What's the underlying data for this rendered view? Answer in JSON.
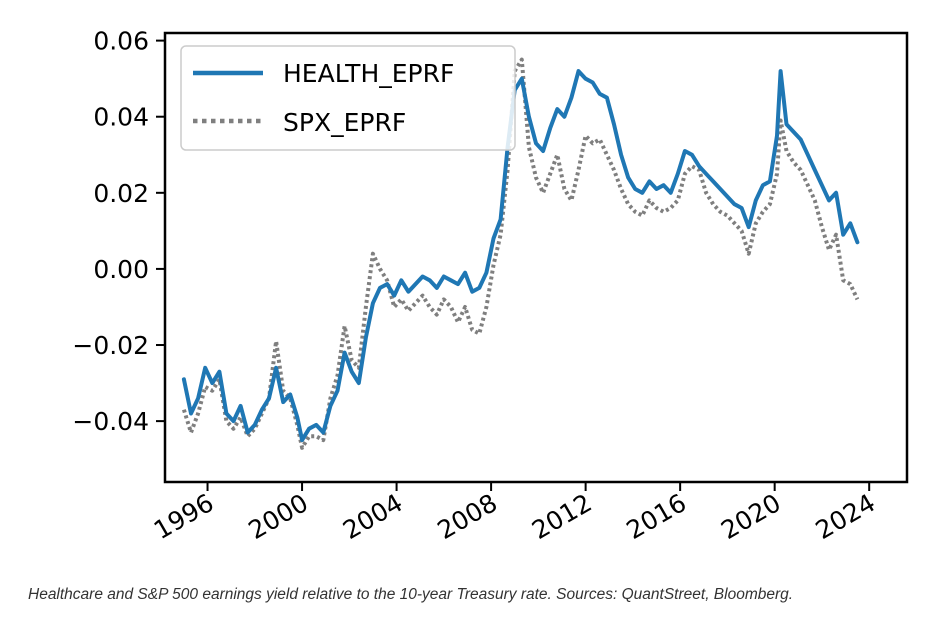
{
  "chart_data": {
    "type": "line",
    "title": "",
    "xlabel": "",
    "ylabel": "",
    "xlim": [
      1994.2,
      2025.6
    ],
    "ylim": [
      -0.056,
      0.062
    ],
    "x_ticks": [
      1996,
      2000,
      2004,
      2008,
      2012,
      2016,
      2020,
      2024
    ],
    "x_tick_labels": [
      "1996",
      "2000",
      "2004",
      "2008",
      "2012",
      "2016",
      "2020",
      "2024"
    ],
    "y_ticks": [
      -0.04,
      -0.02,
      0.0,
      0.02,
      0.04,
      0.06
    ],
    "y_tick_labels": [
      "−0.04",
      "−0.02",
      "0.00",
      "0.02",
      "0.04",
      "0.06"
    ],
    "grid": false,
    "legend_position": "top-left",
    "series": [
      {
        "name": "HEALTH_EPRF",
        "color": "#1f77b4",
        "style": "solid",
        "x": [
          1995.0,
          1995.3,
          1995.6,
          1995.9,
          1996.2,
          1996.5,
          1996.8,
          1997.1,
          1997.4,
          1997.7,
          1998.0,
          1998.3,
          1998.6,
          1998.9,
          1999.2,
          1999.5,
          1999.8,
          2000.0,
          2000.3,
          2000.6,
          2000.9,
          2001.2,
          2001.5,
          2001.8,
          2002.1,
          2002.4,
          2002.7,
          2003.0,
          2003.3,
          2003.6,
          2003.9,
          2004.2,
          2004.5,
          2004.8,
          2005.1,
          2005.4,
          2005.7,
          2006.0,
          2006.3,
          2006.6,
          2006.9,
          2007.2,
          2007.5,
          2007.8,
          2008.1,
          2008.4,
          2008.7,
          2009.0,
          2009.3,
          2009.6,
          2009.9,
          2010.2,
          2010.5,
          2010.8,
          2011.1,
          2011.4,
          2011.7,
          2012.0,
          2012.3,
          2012.6,
          2012.9,
          2013.2,
          2013.5,
          2013.8,
          2014.1,
          2014.4,
          2014.7,
          2015.0,
          2015.3,
          2015.6,
          2015.9,
          2016.2,
          2016.5,
          2016.8,
          2017.1,
          2017.4,
          2017.7,
          2018.0,
          2018.3,
          2018.6,
          2018.9,
          2019.2,
          2019.5,
          2019.8,
          2020.1,
          2020.25,
          2020.5,
          2020.8,
          2021.1,
          2021.4,
          2021.7,
          2022.0,
          2022.3,
          2022.6,
          2022.9,
          2023.2,
          2023.5
        ],
        "values": [
          -0.029,
          -0.038,
          -0.034,
          -0.026,
          -0.03,
          -0.027,
          -0.038,
          -0.04,
          -0.036,
          -0.043,
          -0.041,
          -0.037,
          -0.034,
          -0.026,
          -0.035,
          -0.033,
          -0.039,
          -0.045,
          -0.042,
          -0.041,
          -0.043,
          -0.036,
          -0.032,
          -0.022,
          -0.027,
          -0.03,
          -0.018,
          -0.009,
          -0.005,
          -0.004,
          -0.007,
          -0.003,
          -0.006,
          -0.004,
          -0.002,
          -0.003,
          -0.005,
          -0.002,
          -0.003,
          -0.004,
          -0.001,
          -0.006,
          -0.005,
          -0.001,
          0.008,
          0.013,
          0.032,
          0.047,
          0.05,
          0.04,
          0.033,
          0.031,
          0.037,
          0.042,
          0.04,
          0.045,
          0.052,
          0.05,
          0.049,
          0.046,
          0.045,
          0.038,
          0.03,
          0.024,
          0.021,
          0.02,
          0.023,
          0.021,
          0.022,
          0.02,
          0.025,
          0.031,
          0.03,
          0.027,
          0.025,
          0.023,
          0.021,
          0.019,
          0.017,
          0.016,
          0.011,
          0.018,
          0.022,
          0.023,
          0.035,
          0.052,
          0.038,
          0.036,
          0.034,
          0.03,
          0.026,
          0.022,
          0.018,
          0.02,
          0.009,
          0.012,
          0.007
        ]
      },
      {
        "name": "SPX_EPRF",
        "color": "#7f7f7f",
        "style": "dotted",
        "x": [
          1995.0,
          1995.3,
          1995.6,
          1995.9,
          1996.2,
          1996.5,
          1996.8,
          1997.1,
          1997.4,
          1997.7,
          1998.0,
          1998.3,
          1998.6,
          1998.9,
          1999.2,
          1999.5,
          1999.8,
          2000.0,
          2000.3,
          2000.6,
          2000.9,
          2001.2,
          2001.5,
          2001.8,
          2002.1,
          2002.4,
          2002.7,
          2003.0,
          2003.3,
          2003.6,
          2003.9,
          2004.2,
          2004.5,
          2004.8,
          2005.1,
          2005.4,
          2005.7,
          2006.0,
          2006.3,
          2006.6,
          2006.9,
          2007.2,
          2007.5,
          2007.8,
          2008.1,
          2008.4,
          2008.7,
          2009.0,
          2009.3,
          2009.6,
          2009.9,
          2010.2,
          2010.5,
          2010.8,
          2011.1,
          2011.4,
          2011.7,
          2012.0,
          2012.3,
          2012.6,
          2012.9,
          2013.2,
          2013.5,
          2013.8,
          2014.1,
          2014.4,
          2014.7,
          2015.0,
          2015.3,
          2015.6,
          2015.9,
          2016.2,
          2016.5,
          2016.8,
          2017.1,
          2017.4,
          2017.7,
          2018.0,
          2018.3,
          2018.6,
          2018.9,
          2019.2,
          2019.5,
          2019.8,
          2020.1,
          2020.25,
          2020.5,
          2020.8,
          2021.1,
          2021.4,
          2021.7,
          2022.0,
          2022.3,
          2022.6,
          2022.9,
          2023.2,
          2023.5
        ],
        "values": [
          -0.037,
          -0.043,
          -0.038,
          -0.031,
          -0.032,
          -0.029,
          -0.04,
          -0.042,
          -0.039,
          -0.044,
          -0.042,
          -0.038,
          -0.034,
          -0.019,
          -0.032,
          -0.034,
          -0.041,
          -0.047,
          -0.044,
          -0.044,
          -0.045,
          -0.034,
          -0.028,
          -0.015,
          -0.024,
          -0.026,
          -0.01,
          0.004,
          0.0,
          -0.003,
          -0.01,
          -0.008,
          -0.011,
          -0.009,
          -0.007,
          -0.01,
          -0.012,
          -0.008,
          -0.01,
          -0.014,
          -0.01,
          -0.016,
          -0.017,
          -0.01,
          0.001,
          0.009,
          0.026,
          0.052,
          0.055,
          0.032,
          0.024,
          0.02,
          0.025,
          0.03,
          0.021,
          0.018,
          0.026,
          0.035,
          0.033,
          0.034,
          0.03,
          0.026,
          0.021,
          0.017,
          0.015,
          0.014,
          0.018,
          0.016,
          0.015,
          0.016,
          0.018,
          0.025,
          0.027,
          0.026,
          0.02,
          0.017,
          0.015,
          0.014,
          0.012,
          0.01,
          0.004,
          0.012,
          0.015,
          0.017,
          0.025,
          0.039,
          0.031,
          0.028,
          0.026,
          0.022,
          0.018,
          0.011,
          0.005,
          0.009,
          -0.003,
          -0.004,
          -0.008
        ]
      }
    ]
  },
  "caption": "Healthcare and S&P 500 earnings yield relative to the 10-year Treasury rate. Sources: QuantStreet, Bloomberg."
}
